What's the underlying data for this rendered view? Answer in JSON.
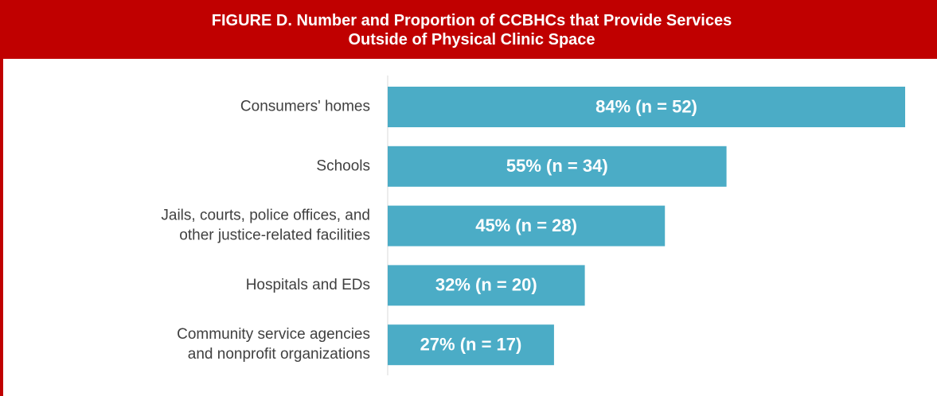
{
  "chart_data": {
    "type": "bar",
    "orientation": "horizontal",
    "title": "FIGURE D. Number and Proportion of CCBHCs that Provide Services\nOutside of Physical Clinic Space",
    "categories": [
      "Consumers' homes",
      "Schools",
      "Jails, courts, police offices,  and\nother justice-related facilities",
      "Hospitals and EDs",
      "Community service agencies\nand nonprofit organizations"
    ],
    "values": [
      84,
      55,
      45,
      32,
      27
    ],
    "value_labels": [
      "84% (n = 52)",
      "55% (n = 34)",
      "45% (n = 28)",
      "32% (n = 20)",
      "27% (n = 17)"
    ],
    "color": "#4bacc6"
  }
}
